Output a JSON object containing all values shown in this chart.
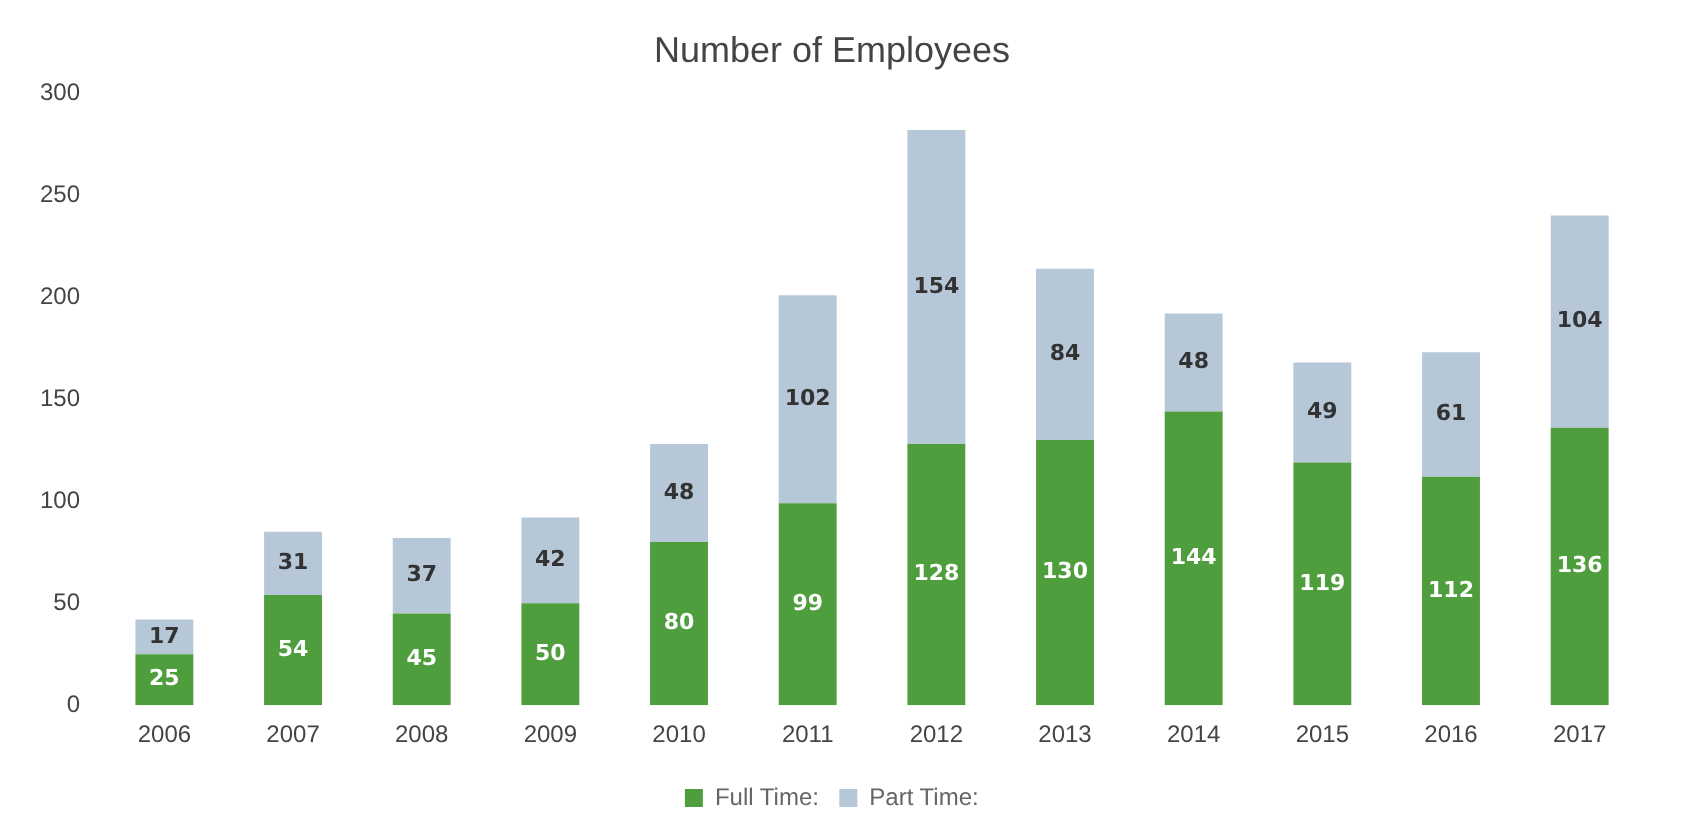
{
  "chart_data": {
    "type": "bar",
    "title": "Number of Employees",
    "stacked": true,
    "data_labels": true,
    "legend": "bottom",
    "grid": false,
    "categories": [
      "2006",
      "2007",
      "2008",
      "2009",
      "2010",
      "2011",
      "2012",
      "2013",
      "2014",
      "2015",
      "2016",
      "2017"
    ],
    "series": [
      {
        "name": "Full Time:",
        "color": "#4e9e3e",
        "values": [
          25,
          54,
          45,
          50,
          80,
          99,
          128,
          130,
          144,
          119,
          112,
          136
        ]
      },
      {
        "name": "Part Time:",
        "color": "#b6c7d8",
        "values": [
          17,
          31,
          37,
          42,
          48,
          102,
          154,
          84,
          48,
          49,
          61,
          104
        ]
      }
    ],
    "ylim": [
      0,
      300
    ],
    "yticks": [
      0,
      50,
      100,
      150,
      200,
      250,
      300
    ]
  }
}
